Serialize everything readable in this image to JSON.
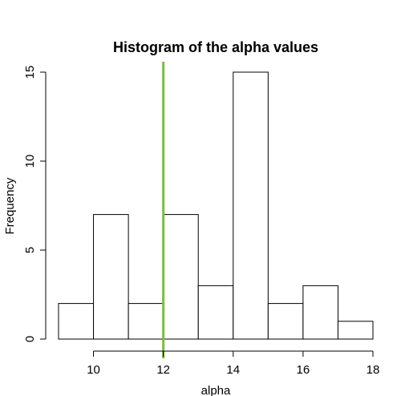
{
  "chart_data": {
    "type": "bar",
    "title": "Histogram of the alpha values",
    "xlabel": "alpha",
    "ylabel": "Frequency",
    "bins": [
      {
        "from": 9,
        "to": 10,
        "count": 2
      },
      {
        "from": 10,
        "to": 11,
        "count": 7
      },
      {
        "from": 11,
        "to": 12,
        "count": 2
      },
      {
        "from": 12,
        "to": 13,
        "count": 7
      },
      {
        "from": 13,
        "to": 14,
        "count": 3
      },
      {
        "from": 14,
        "to": 15,
        "count": 15
      },
      {
        "from": 15,
        "to": 16,
        "count": 2
      },
      {
        "from": 16,
        "to": 17,
        "count": 3
      },
      {
        "from": 17,
        "to": 18,
        "count": 1
      }
    ],
    "xlim": [
      9,
      18
    ],
    "ylim": [
      0,
      15.5
    ],
    "x_ticks": [
      10,
      12,
      14,
      16,
      18
    ],
    "y_ticks": [
      0,
      5,
      10,
      15
    ],
    "vline": {
      "x": 12,
      "color": "#7cbf3a"
    },
    "grid": false,
    "bar_fill": "#ffffff",
    "bar_stroke": "#000000"
  }
}
